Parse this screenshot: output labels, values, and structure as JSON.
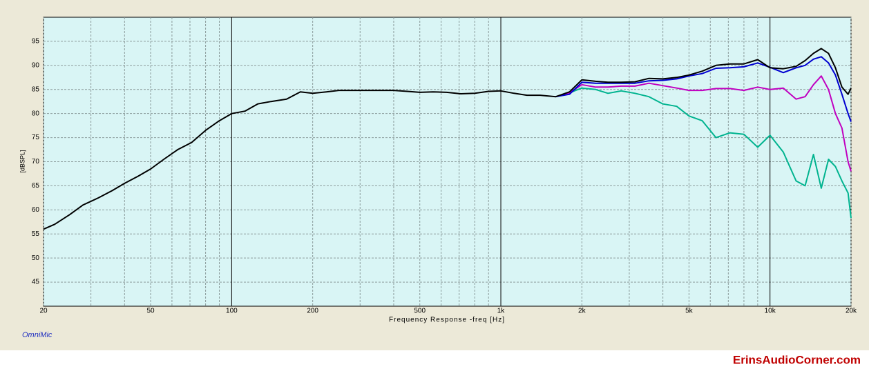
{
  "chart_data": {
    "type": "line",
    "title": null,
    "xlabel": "Frequency Response -freq [Hz]",
    "ylabel": "[dBSPL]",
    "footer_label": "OmniMic",
    "watermark": "ErinsAudioCorner.com",
    "xscale": "log",
    "grid": true,
    "xlim": [
      20,
      20000
    ],
    "ylim": [
      40,
      100
    ],
    "xticks": [
      20,
      50,
      100,
      200,
      500,
      {
        "value": 1000,
        "label": "1k"
      },
      {
        "value": 2000,
        "label": "2k"
      },
      {
        "value": 5000,
        "label": "5k"
      },
      {
        "value": 10000,
        "label": "10k"
      },
      {
        "value": 20000,
        "label": "20k"
      }
    ],
    "x_minor_ticks": [
      30,
      40,
      60,
      70,
      80,
      90,
      300,
      400,
      600,
      700,
      800,
      900,
      3000,
      4000,
      6000,
      7000,
      8000,
      9000
    ],
    "yticks": [
      45,
      50,
      55,
      60,
      65,
      70,
      75,
      80,
      85,
      90,
      95
    ],
    "x": [
      20,
      22,
      25,
      28,
      32,
      36,
      40,
      45,
      50,
      56,
      63,
      71,
      80,
      90,
      100,
      112,
      125,
      140,
      160,
      180,
      200,
      225,
      250,
      280,
      315,
      355,
      400,
      450,
      500,
      560,
      630,
      710,
      800,
      900,
      1000,
      1120,
      1250,
      1400,
      1600,
      1800,
      2000,
      2250,
      2500,
      2800,
      3150,
      3550,
      4000,
      4500,
      5000,
      5600,
      6300,
      7100,
      8000,
      9000,
      10000,
      11200,
      12500,
      13500,
      14500,
      15500,
      16500,
      17500,
      18500,
      19500,
      20000
    ],
    "series": [
      {
        "color": "#00b38f",
        "values": [
          null,
          null,
          null,
          null,
          null,
          null,
          null,
          null,
          null,
          null,
          null,
          null,
          null,
          null,
          null,
          null,
          null,
          null,
          null,
          null,
          null,
          null,
          null,
          null,
          null,
          null,
          null,
          null,
          null,
          null,
          null,
          null,
          null,
          null,
          null,
          null,
          null,
          null,
          83.5,
          84.3,
          85.3,
          85,
          84.2,
          84.7,
          84.2,
          83.5,
          82,
          81.5,
          79.5,
          78.5,
          75,
          76,
          75.7,
          73,
          75.5,
          72,
          66,
          65,
          71.5,
          64.5,
          70.5,
          69,
          66,
          63.5,
          58.3
        ]
      },
      {
        "color": "#c000c0",
        "values": [
          null,
          null,
          null,
          null,
          null,
          null,
          null,
          null,
          null,
          null,
          null,
          null,
          null,
          null,
          null,
          null,
          null,
          null,
          null,
          null,
          null,
          null,
          null,
          null,
          null,
          null,
          null,
          null,
          null,
          null,
          null,
          null,
          null,
          null,
          null,
          null,
          null,
          null,
          83.5,
          84.3,
          86,
          85.5,
          85.5,
          85.7,
          85.7,
          86.3,
          85.8,
          85.3,
          84.8,
          84.8,
          85.2,
          85.2,
          84.8,
          85.5,
          85,
          85.3,
          83,
          83.5,
          86,
          87.8,
          85,
          80,
          77,
          70,
          68
        ]
      },
      {
        "color": "#0000d0",
        "values": [
          null,
          null,
          null,
          null,
          null,
          null,
          null,
          null,
          null,
          null,
          null,
          null,
          null,
          null,
          null,
          null,
          null,
          null,
          null,
          null,
          null,
          null,
          null,
          null,
          null,
          null,
          null,
          null,
          null,
          null,
          null,
          null,
          null,
          null,
          null,
          null,
          null,
          null,
          83.5,
          84,
          86.5,
          86.3,
          86.3,
          86.3,
          86.3,
          86.8,
          86.9,
          87.2,
          87.8,
          88.3,
          89.4,
          89.5,
          89.7,
          90.5,
          89.6,
          88.5,
          89.5,
          90,
          91.3,
          91.8,
          90.5,
          88,
          84,
          80,
          78.3
        ]
      },
      {
        "color": "#000000",
        "values": [
          56,
          57,
          59,
          61,
          62.5,
          64,
          65.5,
          67,
          68.5,
          70.5,
          72.5,
          74,
          76.5,
          78.5,
          80,
          80.5,
          82,
          82.5,
          83,
          84.5,
          84.2,
          84.5,
          84.8,
          84.8,
          84.8,
          84.8,
          84.8,
          84.6,
          84.4,
          84.5,
          84.4,
          84.1,
          84.2,
          84.6,
          84.7,
          84.2,
          83.8,
          83.8,
          83.5,
          84.5,
          87,
          86.7,
          86.5,
          86.5,
          86.6,
          87.3,
          87.2,
          87.5,
          88,
          88.8,
          90,
          90.3,
          90.3,
          91.2,
          89.5,
          89.3,
          89.8,
          91,
          92.5,
          93.5,
          92.5,
          89.5,
          85.5,
          84,
          85.3
        ]
      }
    ]
  }
}
